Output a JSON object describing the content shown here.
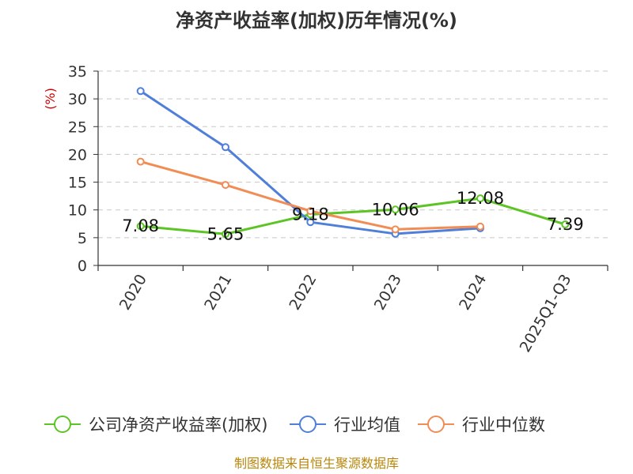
{
  "title": "净资产收益率(加权)历年情况(%)",
  "source": "制图数据来自恒生聚源数据库",
  "colors": {
    "series_company": "#5cc425",
    "series_avg": "#4f7fd9",
    "series_median": "#f28c55",
    "grid": "#c8c8c8",
    "axis": "#333333",
    "ylabel": "#cc0000",
    "source": "#b8860b"
  },
  "chart_data": {
    "type": "line",
    "title": "净资产收益率(加权)历年情况(%)",
    "xlabel": "",
    "ylabel": "(%)",
    "ylim": [
      0,
      35
    ],
    "yticks": [
      0,
      5,
      10,
      15,
      20,
      25,
      30,
      35
    ],
    "categories": [
      "2020",
      "2021",
      "2022",
      "2023",
      "2024",
      "2025Q1-Q3"
    ],
    "grid": "horizontal dashed",
    "legend_position": "bottom",
    "series": [
      {
        "name": "公司净资产收益率(加权)",
        "color": "#5cc425",
        "values": [
          7.08,
          5.65,
          9.18,
          10.06,
          12.08,
          7.39
        ],
        "labels": [
          "7.08",
          "5.65",
          "9.18",
          "10.06",
          "12.08",
          "7.39"
        ]
      },
      {
        "name": "行业均值",
        "color": "#4f7fd9",
        "values": [
          31.4,
          21.3,
          7.8,
          5.7,
          6.7,
          null
        ]
      },
      {
        "name": "行业中位数",
        "color": "#f28c55",
        "values": [
          18.7,
          14.5,
          9.8,
          6.5,
          7.0,
          null
        ]
      }
    ]
  }
}
